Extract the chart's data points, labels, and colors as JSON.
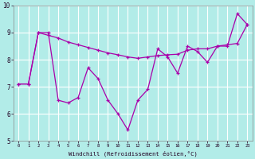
{
  "series1": [
    7.1,
    7.1,
    9.0,
    9.0,
    6.5,
    6.4,
    6.6,
    7.7,
    7.3,
    6.5,
    6.0,
    5.4,
    6.5,
    6.9,
    8.4,
    8.1,
    7.5,
    8.5,
    8.3,
    7.9,
    8.5,
    8.5,
    9.7,
    9.3
  ],
  "series2": [
    7.1,
    7.1,
    9.0,
    8.9,
    8.8,
    8.65,
    8.55,
    8.45,
    8.35,
    8.25,
    8.18,
    8.1,
    8.05,
    8.1,
    8.15,
    8.18,
    8.2,
    8.35,
    8.4,
    8.4,
    8.5,
    8.55,
    8.6,
    9.3
  ],
  "x": [
    0,
    1,
    2,
    3,
    4,
    5,
    6,
    7,
    8,
    9,
    10,
    11,
    12,
    13,
    14,
    15,
    16,
    17,
    18,
    19,
    20,
    21,
    22,
    23
  ],
  "line_color": "#aa00aa",
  "bg_color": "#b2ece8",
  "grid_color": "#ffffff",
  "ylim": [
    5,
    10
  ],
  "xlim": [
    -0.5,
    23.5
  ],
  "xlabel": "Windchill (Refroidissement éolien,°C)",
  "yticks": [
    5,
    6,
    7,
    8,
    9,
    10
  ],
  "xticks": [
    0,
    1,
    2,
    3,
    4,
    5,
    6,
    7,
    8,
    9,
    10,
    11,
    12,
    13,
    14,
    15,
    16,
    17,
    18,
    19,
    20,
    21,
    22,
    23
  ]
}
